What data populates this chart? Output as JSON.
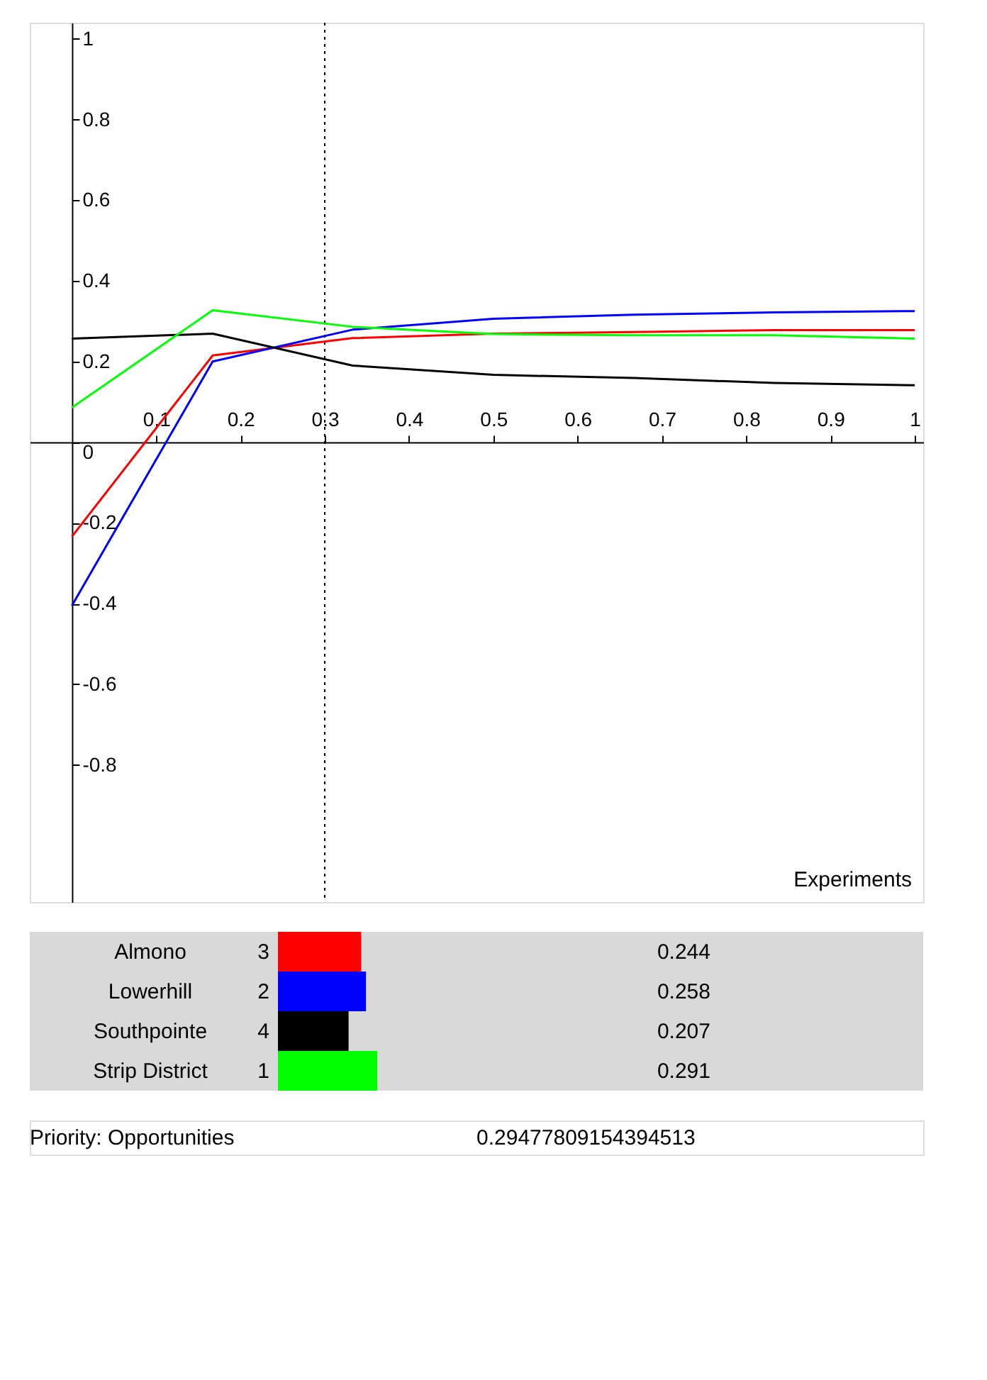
{
  "chart_data": [
    {
      "type": "line",
      "xlabel": "Experiments",
      "x": [
        0,
        0.167,
        0.333,
        0.5,
        0.667,
        0.833,
        1
      ],
      "series": [
        {
          "color": "#ff0000",
          "values": [
            -0.234,
            0.215,
            0.258,
            0.269,
            0.273,
            0.278,
            0.278
          ]
        },
        {
          "color": "#0000ff",
          "values": [
            -0.405,
            0.2,
            0.279,
            0.306,
            0.316,
            0.322,
            0.325
          ]
        },
        {
          "color": "#000000",
          "values": [
            0.257,
            0.269,
            0.19,
            0.167,
            0.159,
            0.147,
            0.141
          ]
        },
        {
          "color": "#00ff00",
          "values": [
            0.086,
            0.327,
            0.286,
            0.268,
            0.265,
            0.265,
            0.257
          ]
        }
      ],
      "xlim": [
        -0.05,
        1.01
      ],
      "ylim": [
        -1.14,
        1.04
      ],
      "xticks": [
        0.1,
        0.2,
        0.3,
        0.4,
        0.5,
        0.6,
        0.7,
        0.8,
        0.9,
        1
      ],
      "yticks": [
        -0.8,
        -0.6,
        -0.4,
        -0.2,
        0,
        0.2,
        0.4,
        0.6,
        0.8,
        1
      ],
      "ref_lines": [
        {
          "axis": "x",
          "value": 0.3,
          "line_style": "dotted",
          "color": "#000000"
        }
      ],
      "grid": false,
      "marker": "none",
      "line_style": "solid"
    },
    {
      "type": "bar",
      "orientation": "horizontal",
      "categories": [
        "Almono",
        "Lowerhill",
        "Southpointe",
        "Strip District"
      ],
      "values": [
        0.244,
        0.258,
        0.207,
        0.291
      ],
      "colors": [
        "#ff0000",
        "#0000ff",
        "#000000",
        "#00ff00"
      ],
      "data_labels": true,
      "annotations": [
        "3",
        "2",
        "4",
        "1",
        "Priority: Opportunities",
        "0.29477809154394513"
      ]
    }
  ]
}
